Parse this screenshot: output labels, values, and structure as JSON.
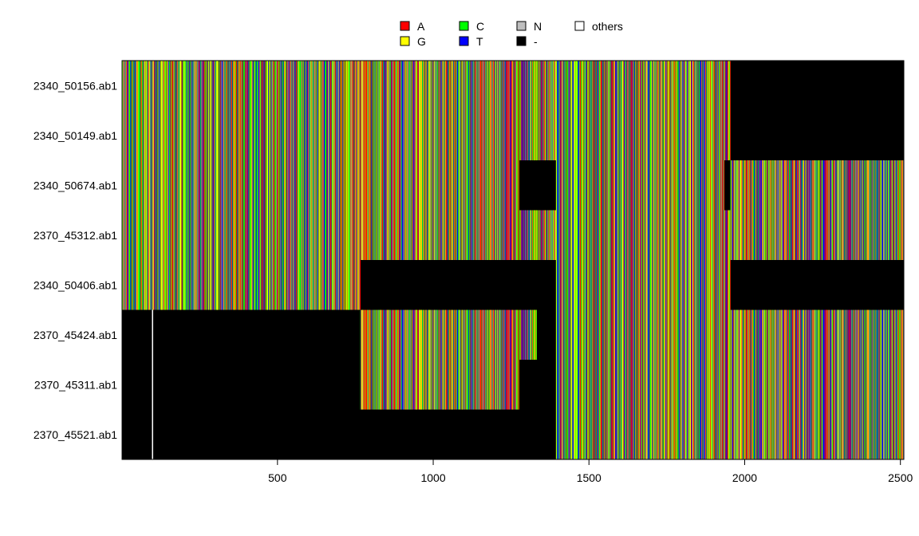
{
  "chart_data": {
    "type": "heatmap",
    "title": "",
    "xlabel": "",
    "ylabel": "",
    "xlim": [
      1,
      2510
    ],
    "x_ticks": [
      500,
      1000,
      1500,
      2000,
      2500
    ],
    "legend": {
      "placement": "top",
      "entries": [
        {
          "label": "A",
          "color": "#ff0000"
        },
        {
          "label": "C",
          "color": "#00ff00"
        },
        {
          "label": "N",
          "color": "#bebebe"
        },
        {
          "label": "others",
          "color": "#ffffff"
        },
        {
          "label": "G",
          "color": "#ffff00"
        },
        {
          "label": "T",
          "color": "#0000ff"
        },
        {
          "label": "-",
          "color": "#000000"
        }
      ]
    },
    "rows": [
      {
        "name": "2340_50156.ab1",
        "covered": [
          [
            1,
            1953
          ]
        ]
      },
      {
        "name": "2340_50149.ab1",
        "covered": [
          [
            1,
            1953
          ]
        ]
      },
      {
        "name": "2340_50674.ab1",
        "covered": [
          [
            1,
            1275
          ],
          [
            1394,
            1933
          ],
          [
            1954,
            2510
          ]
        ]
      },
      {
        "name": "2370_45312.ab1",
        "covered": [
          [
            1,
            2510
          ]
        ]
      },
      {
        "name": "2340_50406.ab1",
        "covered": [
          [
            1,
            765
          ],
          [
            1394,
            1953
          ]
        ]
      },
      {
        "name": "2370_45424.ab1",
        "covered": [
          [
            766,
            1331
          ],
          [
            1394,
            2510
          ]
        ],
        "others": [
          97
        ]
      },
      {
        "name": "2370_45311.ab1",
        "covered": [
          [
            766,
            1275
          ],
          [
            1394,
            2510
          ]
        ],
        "others": [
          97
        ]
      },
      {
        "name": "2370_45521.ab1",
        "covered": [
          [
            1394,
            2510
          ]
        ],
        "others": [
          97
        ]
      }
    ]
  }
}
